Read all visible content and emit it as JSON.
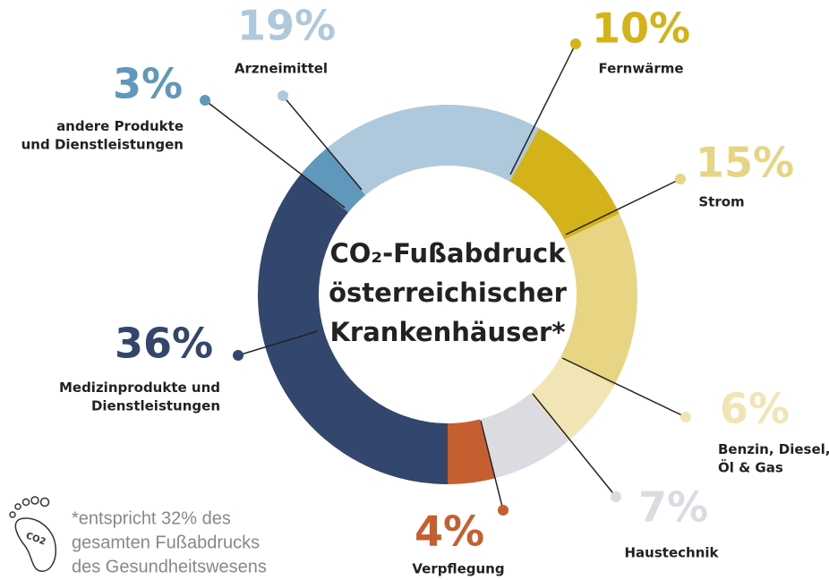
{
  "chart_data": {
    "type": "donut",
    "title_lines": [
      "CO₂-Fußabdruck",
      "österreichischer",
      "Krankenhäuser*"
    ],
    "categories": [
      "Fernwärme",
      "Strom",
      "Benzin, Diesel,\nÖl & Gas",
      "Haustechnik",
      "Verpflegung",
      "Medizinprodukte und\nDienstleistungen",
      "andere Produkte\nund Dienstleistungen",
      "Arzneimittel"
    ],
    "values": [
      10,
      15,
      6,
      7,
      4,
      36,
      3,
      19
    ],
    "value_labels": [
      "10%",
      "15%",
      "6%",
      "7%",
      "4%",
      "36%",
      "3%",
      "19%"
    ],
    "colors": [
      "#d4b21a",
      "#e8d584",
      "#f1e5b5",
      "#dcdbe2",
      "#c65f30",
      "#33466e",
      "#5f98bb",
      "#adc9db"
    ],
    "footnote_lines": [
      "*entspricht 32% des",
      "gesamten Fußabdrucks",
      "des Gesundheitswesens"
    ],
    "icon_label": "CO2"
  }
}
